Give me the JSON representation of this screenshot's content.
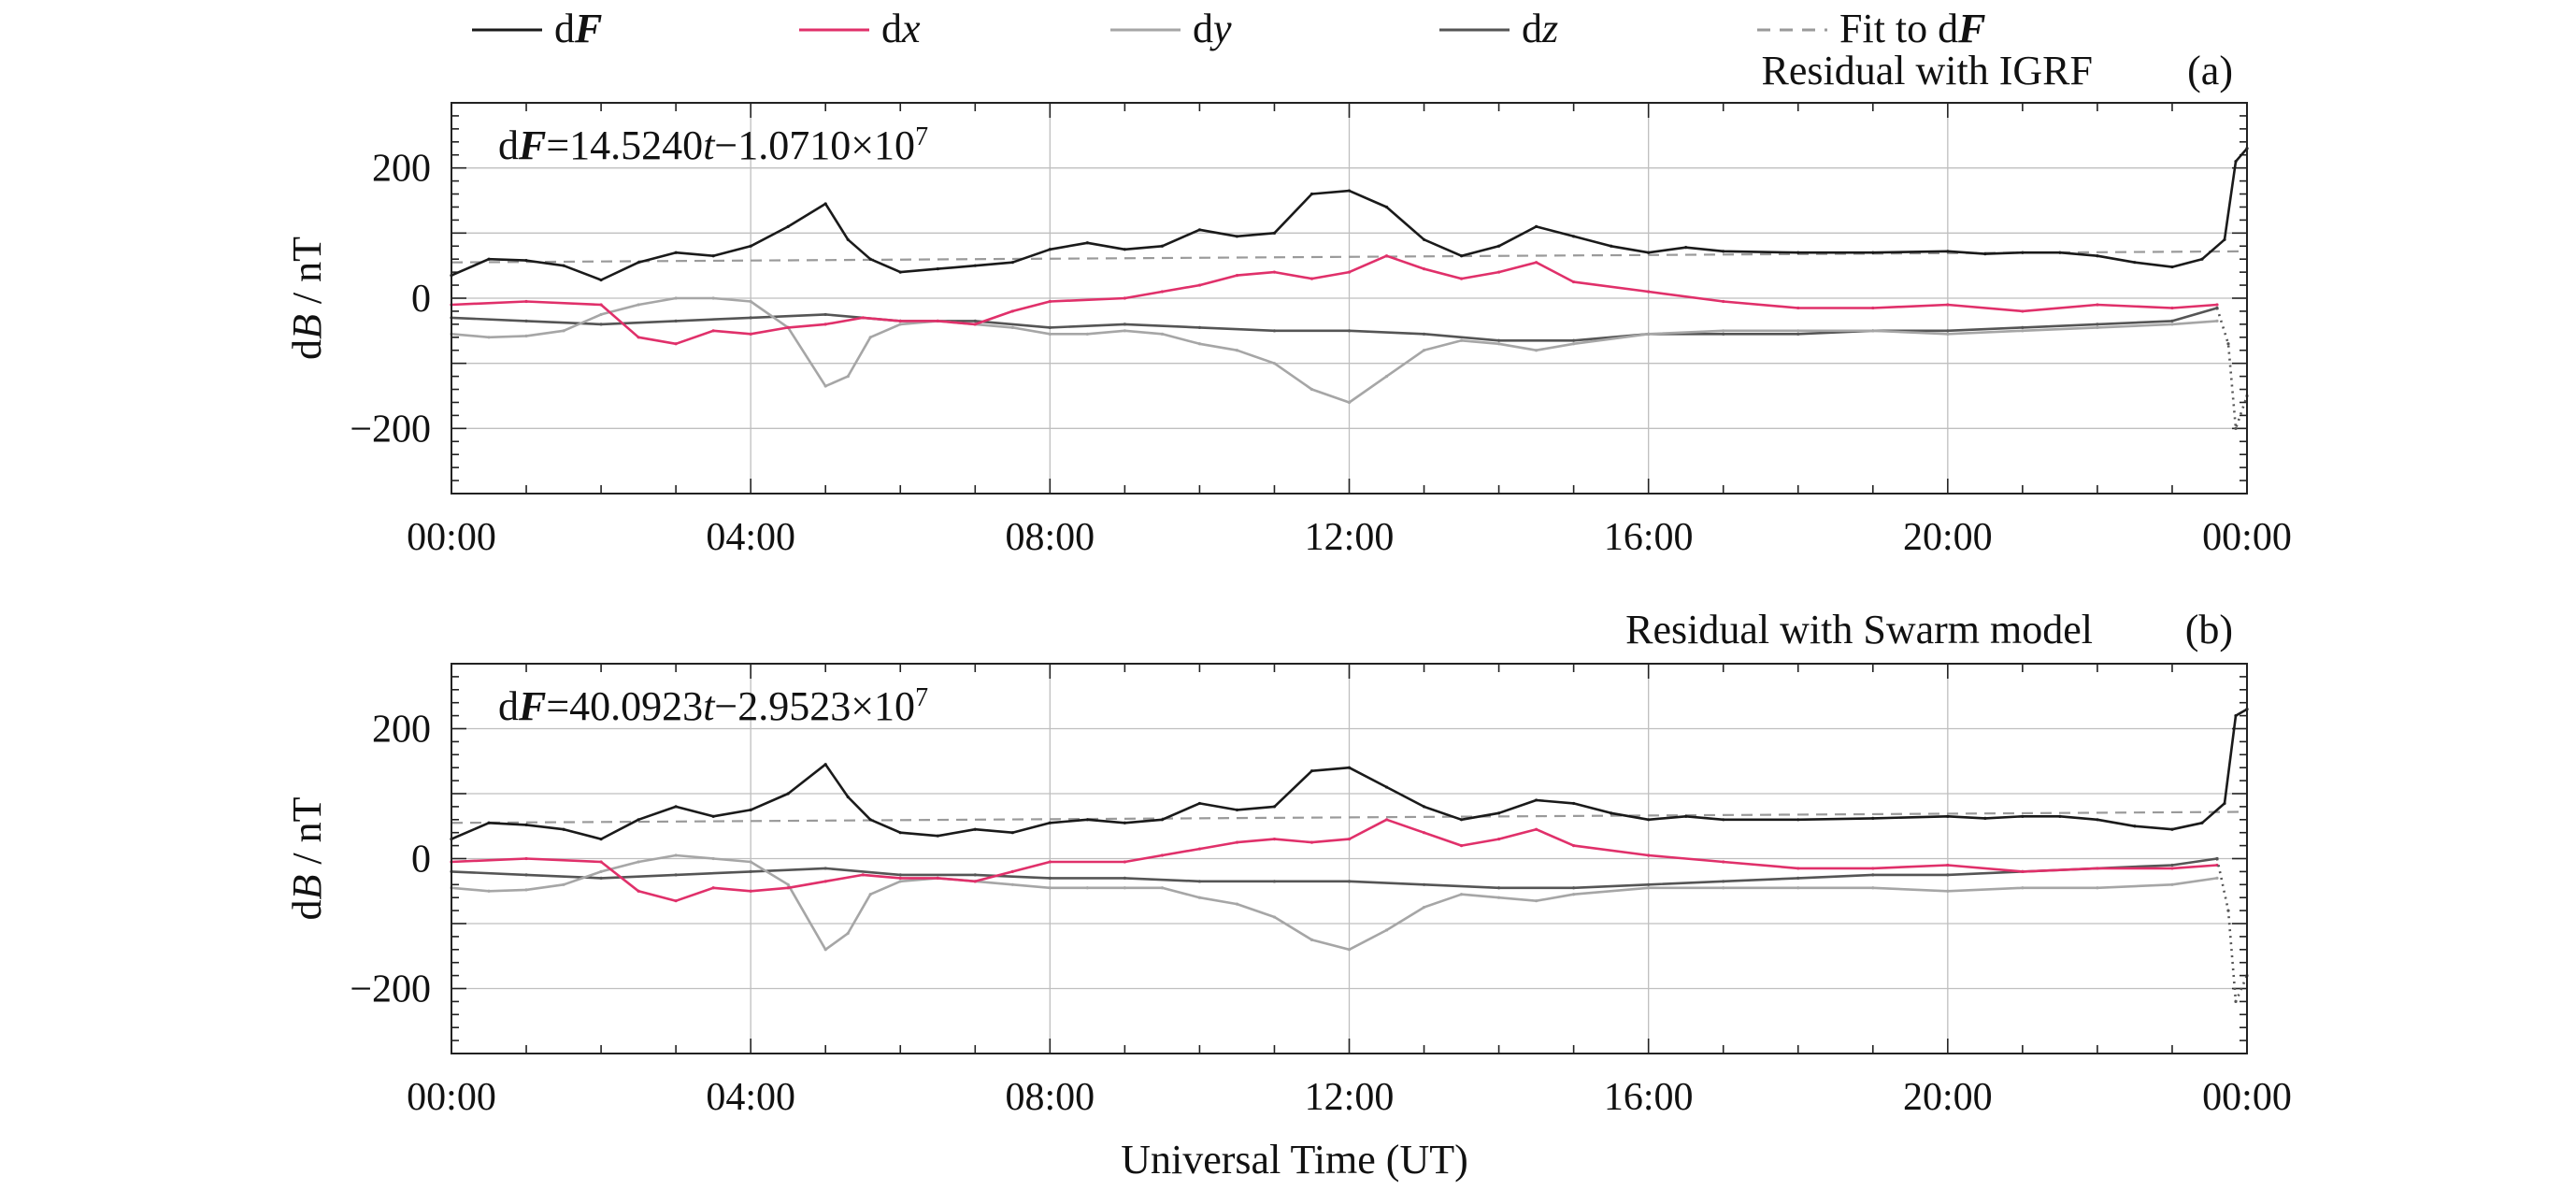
{
  "legend": {
    "items": [
      {
        "key": "dF",
        "prefix": "d",
        "italic": "F",
        "bold": true,
        "suffix": "",
        "color": "#1a1a1a",
        "dash": "solid"
      },
      {
        "key": "dx",
        "prefix": "d",
        "italic": "x",
        "bold": false,
        "suffix": "",
        "color": "#e0306a",
        "dash": "solid"
      },
      {
        "key": "dy",
        "prefix": "d",
        "italic": "y",
        "bold": false,
        "suffix": "",
        "color": "#a6a6a6",
        "dash": "solid"
      },
      {
        "key": "dz",
        "prefix": "d",
        "italic": "z",
        "bold": false,
        "suffix": "",
        "color": "#555555",
        "dash": "solid"
      },
      {
        "key": "fit",
        "prefix": "Fit to d",
        "italic": "F",
        "bold": true,
        "suffix": "",
        "color": "#9a9a9a",
        "dash": "dashed"
      }
    ]
  },
  "xlabel": "Universal Time (UT)",
  "colors": {
    "dF": "#1a1a1a",
    "dx": "#e0306a",
    "dy": "#a6a6a6",
    "dz": "#555555",
    "fit": "#9a9a9a",
    "accent_yellow": "#cfd43a",
    "accent_blue": "#2f6fd0"
  },
  "chart_data": [
    {
      "type": "line",
      "panel_label": "(a)",
      "title": "Residual with IGRF",
      "ylabel_prefix": "d",
      "ylabel_italic": "B",
      "ylabel_suffix": " / nT",
      "xlabel": "",
      "equation": {
        "lhs_prefix": "d",
        "lhs_var": "F",
        "eq": "=",
        "coef": "14.5240",
        "var": "t",
        "minus": "−",
        "const": "1.0710×10",
        "exp": "7"
      },
      "x_ticks": [
        "00:00",
        "04:00",
        "08:00",
        "12:00",
        "16:00",
        "20:00",
        "00:00"
      ],
      "x_tick_hours": [
        0,
        4,
        8,
        12,
        16,
        20,
        24
      ],
      "xlim": [
        0,
        24
      ],
      "ylim": [
        -300,
        300
      ],
      "y_ticks": [
        200,
        0,
        -200
      ],
      "grid": true,
      "fit": {
        "x": [
          0,
          24
        ],
        "y": [
          55,
          72
        ]
      },
      "series": [
        {
          "key": "dF",
          "x": [
            0,
            0.5,
            1.0,
            1.5,
            2.0,
            2.5,
            3.0,
            3.5,
            4.0,
            4.5,
            5.0,
            5.3,
            5.6,
            6.0,
            6.5,
            7.0,
            7.5,
            8.0,
            8.5,
            9.0,
            9.5,
            10.0,
            10.5,
            11.0,
            11.5,
            12.0,
            12.5,
            13.0,
            13.5,
            14.0,
            14.5,
            15.0,
            15.5,
            16.0,
            16.5,
            17.0,
            18.0,
            19.0,
            20.0,
            20.5,
            21.0,
            21.5,
            22.0,
            22.5,
            23.0,
            23.4,
            23.7,
            23.85,
            24.0
          ],
          "y": [
            35,
            60,
            58,
            50,
            28,
            55,
            70,
            65,
            80,
            110,
            145,
            90,
            60,
            40,
            45,
            50,
            55,
            75,
            85,
            75,
            80,
            105,
            95,
            100,
            160,
            165,
            140,
            90,
            65,
            80,
            110,
            95,
            80,
            70,
            78,
            72,
            70,
            70,
            72,
            68,
            70,
            70,
            65,
            55,
            48,
            60,
            90,
            210,
            230
          ]
        },
        {
          "key": "dx",
          "x": [
            0,
            1.0,
            2.0,
            2.5,
            3.0,
            3.5,
            4.0,
            4.5,
            5.0,
            5.5,
            6.0,
            6.5,
            7.0,
            7.5,
            8.0,
            9.0,
            9.5,
            10.0,
            10.5,
            11.0,
            11.5,
            12.0,
            12.5,
            13.0,
            13.5,
            14.0,
            14.5,
            15.0,
            16.0,
            17.0,
            18.0,
            19.0,
            20.0,
            21.0,
            22.0,
            23.0,
            23.6
          ],
          "y": [
            -10,
            -5,
            -10,
            -60,
            -70,
            -50,
            -55,
            -45,
            -40,
            -30,
            -35,
            -35,
            -40,
            -20,
            -5,
            0,
            10,
            20,
            35,
            40,
            30,
            40,
            65,
            45,
            30,
            40,
            55,
            25,
            10,
            -5,
            -15,
            -15,
            -10,
            -20,
            -10,
            -15,
            -10
          ]
        },
        {
          "key": "dy",
          "x": [
            0,
            0.5,
            1.0,
            1.5,
            2.0,
            2.5,
            3.0,
            3.5,
            4.0,
            4.5,
            5.0,
            5.3,
            5.6,
            6.0,
            6.5,
            7.0,
            7.5,
            8.0,
            8.5,
            9.0,
            9.5,
            10.0,
            10.5,
            11.0,
            11.5,
            12.0,
            12.5,
            13.0,
            13.5,
            14.0,
            14.5,
            15.0,
            16.0,
            17.0,
            18.0,
            19.0,
            20.0,
            21.0,
            22.0,
            23.0,
            23.6
          ],
          "y": [
            -55,
            -60,
            -58,
            -50,
            -25,
            -10,
            0,
            0,
            -5,
            -45,
            -135,
            -120,
            -60,
            -40,
            -35,
            -40,
            -45,
            -55,
            -55,
            -50,
            -55,
            -70,
            -80,
            -100,
            -140,
            -160,
            -120,
            -80,
            -65,
            -70,
            -80,
            -70,
            -55,
            -50,
            -50,
            -50,
            -55,
            -50,
            -45,
            -40,
            -35
          ]
        },
        {
          "key": "dz",
          "x": [
            0,
            1.0,
            2.0,
            3.0,
            4.0,
            5.0,
            6.0,
            7.0,
            8.0,
            9.0,
            10.0,
            11.0,
            12.0,
            13.0,
            14.0,
            15.0,
            16.0,
            17.0,
            18.0,
            19.0,
            20.0,
            21.0,
            22.0,
            23.0,
            23.6
          ],
          "y": [
            -30,
            -35,
            -40,
            -35,
            -30,
            -25,
            -35,
            -35,
            -45,
            -40,
            -45,
            -50,
            -50,
            -55,
            -65,
            -65,
            -55,
            -55,
            -55,
            -50,
            -50,
            -45,
            -40,
            -35,
            -15
          ]
        },
        {
          "key": "dz_tail",
          "color_key": "dz",
          "dotted": true,
          "x": [
            23.6,
            23.75,
            23.85,
            24.0
          ],
          "y": [
            -15,
            -70,
            -200,
            -150
          ]
        }
      ]
    },
    {
      "type": "line",
      "panel_label": "(b)",
      "title": "Residual with Swarm model",
      "ylabel_prefix": "d",
      "ylabel_italic": "B",
      "ylabel_suffix": " / nT",
      "xlabel": "Universal Time (UT)",
      "equation": {
        "lhs_prefix": "d",
        "lhs_var": "F",
        "eq": "=",
        "coef": "40.0923",
        "var": "t",
        "minus": "−",
        "const": "2.9523×10",
        "exp": "7"
      },
      "x_ticks": [
        "00:00",
        "04:00",
        "08:00",
        "12:00",
        "16:00",
        "20:00",
        "00:00"
      ],
      "x_tick_hours": [
        0,
        4,
        8,
        12,
        16,
        20,
        24
      ],
      "xlim": [
        0,
        24
      ],
      "ylim": [
        -300,
        300
      ],
      "y_ticks": [
        200,
        0,
        -200
      ],
      "grid": true,
      "fit": {
        "x": [
          0,
          24
        ],
        "y": [
          55,
          72
        ]
      },
      "series": [
        {
          "key": "dF",
          "x": [
            0,
            0.5,
            1.0,
            1.5,
            2.0,
            2.5,
            3.0,
            3.5,
            4.0,
            4.5,
            5.0,
            5.3,
            5.6,
            6.0,
            6.5,
            7.0,
            7.5,
            8.0,
            8.5,
            9.0,
            9.5,
            10.0,
            10.5,
            11.0,
            11.5,
            12.0,
            12.5,
            13.0,
            13.5,
            14.0,
            14.5,
            15.0,
            15.5,
            16.0,
            16.5,
            17.0,
            18.0,
            19.0,
            20.0,
            20.5,
            21.0,
            21.5,
            22.0,
            22.5,
            23.0,
            23.4,
            23.7,
            23.85,
            24.0
          ],
          "y": [
            30,
            55,
            52,
            45,
            30,
            60,
            80,
            65,
            75,
            100,
            145,
            95,
            60,
            40,
            35,
            45,
            40,
            55,
            60,
            55,
            60,
            85,
            75,
            80,
            135,
            140,
            110,
            80,
            60,
            70,
            90,
            85,
            70,
            60,
            65,
            60,
            60,
            62,
            65,
            62,
            65,
            65,
            60,
            50,
            45,
            55,
            85,
            220,
            230
          ]
        },
        {
          "key": "dx",
          "x": [
            0,
            1.0,
            2.0,
            2.5,
            3.0,
            3.5,
            4.0,
            4.5,
            5.0,
            5.5,
            6.0,
            6.5,
            7.0,
            7.5,
            8.0,
            9.0,
            9.5,
            10.0,
            10.5,
            11.0,
            11.5,
            12.0,
            12.5,
            13.0,
            13.5,
            14.0,
            14.5,
            15.0,
            16.0,
            17.0,
            18.0,
            19.0,
            20.0,
            21.0,
            22.0,
            23.0,
            23.6
          ],
          "y": [
            -5,
            0,
            -5,
            -50,
            -65,
            -45,
            -50,
            -45,
            -35,
            -25,
            -30,
            -30,
            -35,
            -20,
            -5,
            -5,
            5,
            15,
            25,
            30,
            25,
            30,
            60,
            40,
            20,
            30,
            45,
            20,
            5,
            -5,
            -15,
            -15,
            -10,
            -20,
            -15,
            -15,
            -10
          ]
        },
        {
          "key": "dy",
          "x": [
            0,
            0.5,
            1.0,
            1.5,
            2.0,
            2.5,
            3.0,
            3.5,
            4.0,
            4.5,
            5.0,
            5.3,
            5.6,
            6.0,
            6.5,
            7.0,
            7.5,
            8.0,
            8.5,
            9.0,
            9.5,
            10.0,
            10.5,
            11.0,
            11.5,
            12.0,
            12.5,
            13.0,
            13.5,
            14.0,
            14.5,
            15.0,
            16.0,
            17.0,
            18.0,
            19.0,
            20.0,
            21.0,
            22.0,
            23.0,
            23.6
          ],
          "y": [
            -45,
            -50,
            -48,
            -40,
            -20,
            -5,
            5,
            0,
            -5,
            -40,
            -140,
            -115,
            -55,
            -35,
            -30,
            -35,
            -40,
            -45,
            -45,
            -45,
            -45,
            -60,
            -70,
            -90,
            -125,
            -140,
            -110,
            -75,
            -55,
            -60,
            -65,
            -55,
            -45,
            -45,
            -45,
            -45,
            -50,
            -45,
            -45,
            -40,
            -30
          ]
        },
        {
          "key": "dz",
          "x": [
            0,
            1.0,
            2.0,
            3.0,
            4.0,
            5.0,
            6.0,
            7.0,
            8.0,
            9.0,
            10.0,
            11.0,
            12.0,
            13.0,
            14.0,
            15.0,
            16.0,
            17.0,
            18.0,
            19.0,
            20.0,
            21.0,
            22.0,
            23.0,
            23.6
          ],
          "y": [
            -20,
            -25,
            -30,
            -25,
            -20,
            -15,
            -25,
            -25,
            -30,
            -30,
            -35,
            -35,
            -35,
            -40,
            -45,
            -45,
            -40,
            -35,
            -30,
            -25,
            -25,
            -20,
            -15,
            -10,
            0
          ]
        },
        {
          "key": "dz_tail",
          "color_key": "dz",
          "dotted": true,
          "x": [
            23.6,
            23.75,
            23.85,
            24.0
          ],
          "y": [
            0,
            -80,
            -220,
            -180
          ]
        }
      ]
    }
  ]
}
